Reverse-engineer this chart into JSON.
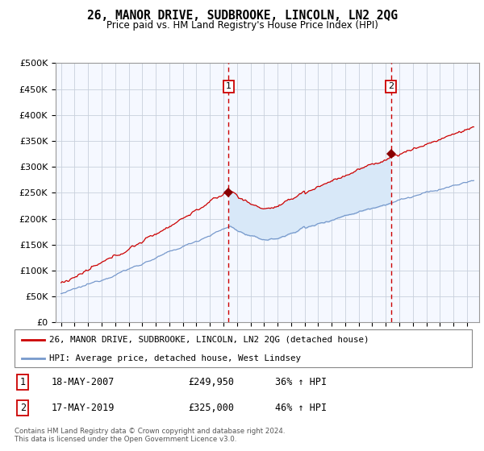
{
  "title": "26, MANOR DRIVE, SUDBROOKE, LINCOLN, LN2 2QG",
  "subtitle": "Price paid vs. HM Land Registry's House Price Index (HPI)",
  "legend_line1": "26, MANOR DRIVE, SUDBROOKE, LINCOLN, LN2 2QG (detached house)",
  "legend_line2": "HPI: Average price, detached house, West Lindsey",
  "sale1_date": "18-MAY-2007",
  "sale1_price": "£249,950",
  "sale1_hpi": "36% ↑ HPI",
  "sale2_date": "17-MAY-2019",
  "sale2_price": "£325,000",
  "sale2_hpi": "46% ↑ HPI",
  "footnote": "Contains HM Land Registry data © Crown copyright and database right 2024.\nThis data is licensed under the Open Government Licence v3.0.",
  "red_color": "#cc0000",
  "blue_color": "#7799cc",
  "fill_color": "#d8e8f8",
  "bg_color": "#f5f8ff",
  "grid_color": "#c8d0dc",
  "ylim": [
    0,
    500000
  ],
  "yticks": [
    0,
    50000,
    100000,
    150000,
    200000,
    250000,
    300000,
    350000,
    400000,
    450000,
    500000
  ],
  "sale1_year": 2007.38,
  "sale2_year": 2019.38,
  "sale1_value": 249950,
  "sale2_value": 325000,
  "xstart": 1995,
  "xend": 2025
}
